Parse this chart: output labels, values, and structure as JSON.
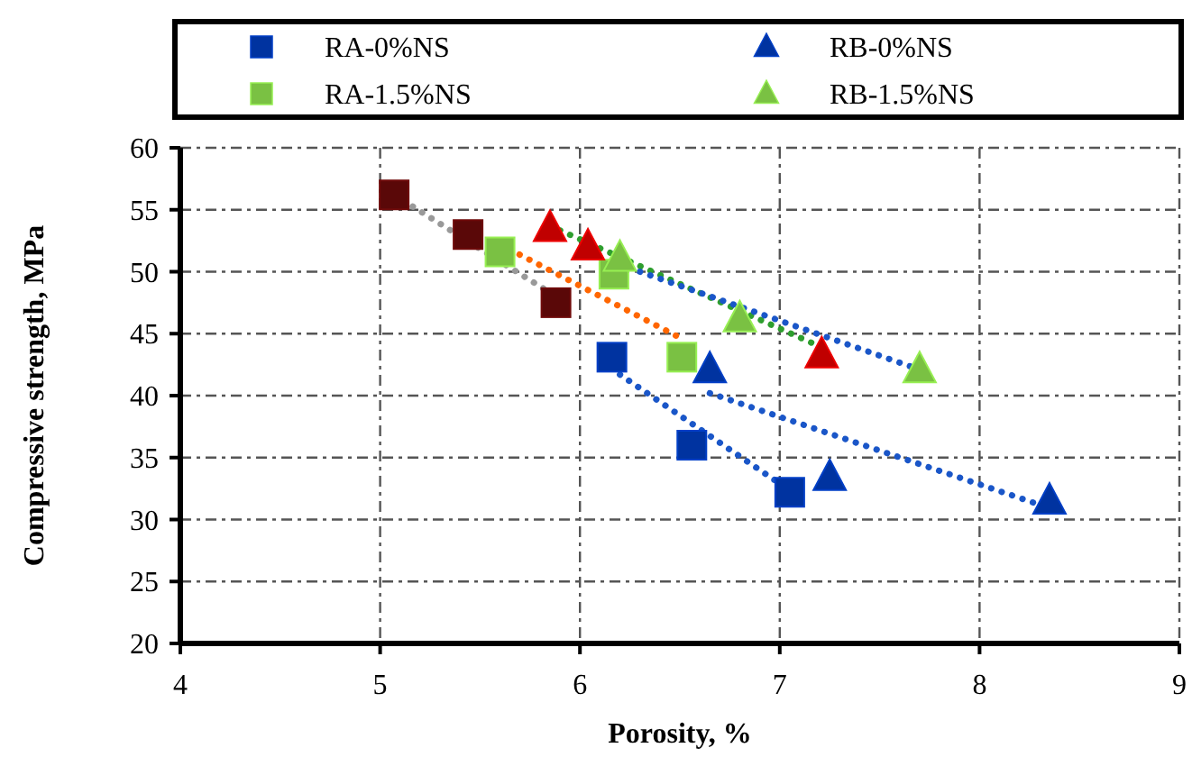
{
  "chart_data": {
    "type": "scatter",
    "xlabel": "Porosity, %",
    "ylabel": "Compressive strength, MPa",
    "xlim": [
      4,
      9
    ],
    "xticks": [
      4,
      5,
      6,
      7,
      8,
      9
    ],
    "ylim": [
      20,
      60
    ],
    "yticks": [
      20,
      25,
      30,
      35,
      40,
      45,
      50,
      55,
      60
    ],
    "grid": true,
    "legend": "top",
    "series": [
      {
        "name": "RA-0%NS",
        "color": "#0033a0",
        "marker": "square",
        "x": [
          6.16,
          6.56,
          7.05
        ],
        "values": [
          43.1,
          36.0,
          32.2
        ]
      },
      {
        "name": "RB-0%NS",
        "color": "#0033a0",
        "marker": "triangle",
        "x": [
          6.65,
          7.25,
          8.35
        ],
        "values": [
          42.1,
          33.4,
          31.5
        ]
      },
      {
        "name": "RA-1.5%NS",
        "color": "#7ac143",
        "marker": "square",
        "x": [
          5.6,
          6.17,
          6.51
        ],
        "values": [
          51.6,
          49.8,
          43.1
        ]
      },
      {
        "name": "RB-1.5%NS",
        "color": "#7ac143",
        "marker": "triangle",
        "x": [
          6.2,
          6.8,
          7.7
        ],
        "values": [
          51.1,
          46.2,
          42.1
        ]
      },
      {
        "color": "#5a0808",
        "marker": "square",
        "x": [
          5.07,
          5.44,
          5.88
        ],
        "values": [
          56.2,
          53.0,
          47.5
        ]
      },
      {
        "color": "#c00000",
        "marker": "triangle",
        "x": [
          5.85,
          6.04,
          7.21
        ],
        "values": [
          53.5,
          52.0,
          43.3
        ]
      },
      {
        "type": "line",
        "color": "#999999",
        "marker": "none",
        "line_style": "dotted",
        "x": [
          5.07,
          5.92
        ],
        "values": [
          56.2,
          47.6
        ]
      },
      {
        "type": "line",
        "color": "#ff6600",
        "marker": "none",
        "line_style": "dotted",
        "x": [
          5.6,
          6.51
        ],
        "values": [
          52.2,
          44.6
        ]
      },
      {
        "type": "line",
        "color": "#2e9e2e",
        "marker": "none",
        "line_style": "dotted",
        "x": [
          5.85,
          7.21
        ],
        "values": [
          53.7,
          43.9
        ]
      },
      {
        "type": "line",
        "color": "#1a56c8",
        "marker": "none",
        "line_style": "dotted",
        "x": [
          6.3,
          7.7
        ],
        "values": [
          50.0,
          42.1
        ]
      },
      {
        "type": "line",
        "color": "#1a56c8",
        "marker": "none",
        "line_style": "dotted",
        "x": [
          6.65,
          8.3
        ],
        "values": [
          40.2,
          31.2
        ]
      },
      {
        "type": "line",
        "color": "#1a56c8",
        "marker": "none",
        "line_style": "dotted",
        "x": [
          6.2,
          7.0
        ],
        "values": [
          41.7,
          32.9
        ]
      }
    ]
  }
}
